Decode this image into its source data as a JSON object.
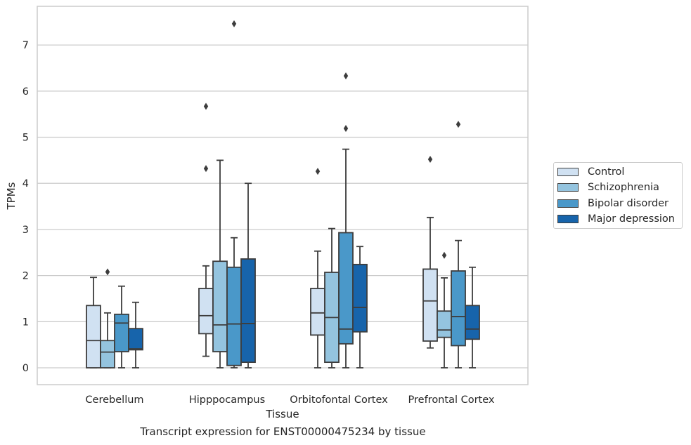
{
  "caption": "Transcript expression for ENST00000475234 by tissue",
  "chart_data": {
    "type": "box",
    "xlabel": "Tissue",
    "ylabel": "TPMs",
    "ylim": [
      -0.35,
      7.85
    ],
    "yticks": [
      0,
      1,
      2,
      3,
      4,
      5,
      6,
      7
    ],
    "grid": "horizontal",
    "categories": [
      "Cerebellum",
      "Hipppocampus",
      "Orbitofontal Cortex",
      "Prefrontal Cortex"
    ],
    "legend": {
      "placement": "outside-right",
      "entries": [
        "Control",
        "Schizophrenia",
        "Bipolar disorder",
        "Major depression"
      ]
    },
    "series": [
      {
        "name": "Control",
        "color": "#d0e1f2",
        "boxes": [
          {
            "q1": 0.0,
            "median": 0.59,
            "q3": 1.35,
            "whisker_low": 0.0,
            "whisker_high": 1.96,
            "outliers": []
          },
          {
            "q1": 0.74,
            "median": 1.13,
            "q3": 1.72,
            "whisker_low": 0.25,
            "whisker_high": 2.21,
            "outliers": [
              4.32,
              5.67
            ]
          },
          {
            "q1": 0.71,
            "median": 1.19,
            "q3": 1.72,
            "whisker_low": 0.0,
            "whisker_high": 2.53,
            "outliers": [
              4.26
            ]
          },
          {
            "q1": 0.58,
            "median": 1.45,
            "q3": 2.14,
            "whisker_low": 0.43,
            "whisker_high": 3.26,
            "outliers": [
              4.52
            ]
          }
        ]
      },
      {
        "name": "Schizophrenia",
        "color": "#94c4df",
        "boxes": [
          {
            "q1": 0.0,
            "median": 0.34,
            "q3": 0.59,
            "whisker_low": 0.0,
            "whisker_high": 1.19,
            "outliers": [
              2.08
            ]
          },
          {
            "q1": 0.35,
            "median": 0.93,
            "q3": 2.31,
            "whisker_low": 0.0,
            "whisker_high": 4.5,
            "outliers": []
          },
          {
            "q1": 0.12,
            "median": 1.09,
            "q3": 2.07,
            "whisker_low": 0.0,
            "whisker_high": 3.02,
            "outliers": []
          },
          {
            "q1": 0.66,
            "median": 0.82,
            "q3": 1.23,
            "whisker_low": 0.0,
            "whisker_high": 1.95,
            "outliers": [
              2.44
            ]
          }
        ]
      },
      {
        "name": "Bipolar disorder",
        "color": "#4a98c9",
        "boxes": [
          {
            "q1": 0.35,
            "median": 0.97,
            "q3": 1.16,
            "whisker_low": 0.0,
            "whisker_high": 1.77,
            "outliers": []
          },
          {
            "q1": 0.05,
            "median": 0.95,
            "q3": 2.18,
            "whisker_low": 0.0,
            "whisker_high": 2.82,
            "outliers": [
              7.46
            ]
          },
          {
            "q1": 0.52,
            "median": 0.84,
            "q3": 2.93,
            "whisker_low": 0.0,
            "whisker_high": 4.74,
            "outliers": [
              5.19,
              6.33
            ]
          },
          {
            "q1": 0.48,
            "median": 1.11,
            "q3": 2.1,
            "whisker_low": 0.0,
            "whisker_high": 2.76,
            "outliers": [
              5.28
            ]
          }
        ]
      },
      {
        "name": "Major depression",
        "color": "#1764ab",
        "boxes": [
          {
            "q1": 0.39,
            "median": 0.41,
            "q3": 0.85,
            "whisker_low": 0.0,
            "whisker_high": 1.42,
            "outliers": []
          },
          {
            "q1": 0.12,
            "median": 0.96,
            "q3": 2.36,
            "whisker_low": 0.0,
            "whisker_high": 4.0,
            "outliers": []
          },
          {
            "q1": 0.78,
            "median": 1.31,
            "q3": 2.24,
            "whisker_low": 0.0,
            "whisker_high": 2.63,
            "outliers": []
          },
          {
            "q1": 0.62,
            "median": 0.84,
            "q3": 1.35,
            "whisker_low": 0.0,
            "whisker_high": 2.18,
            "outliers": []
          }
        ]
      }
    ]
  }
}
